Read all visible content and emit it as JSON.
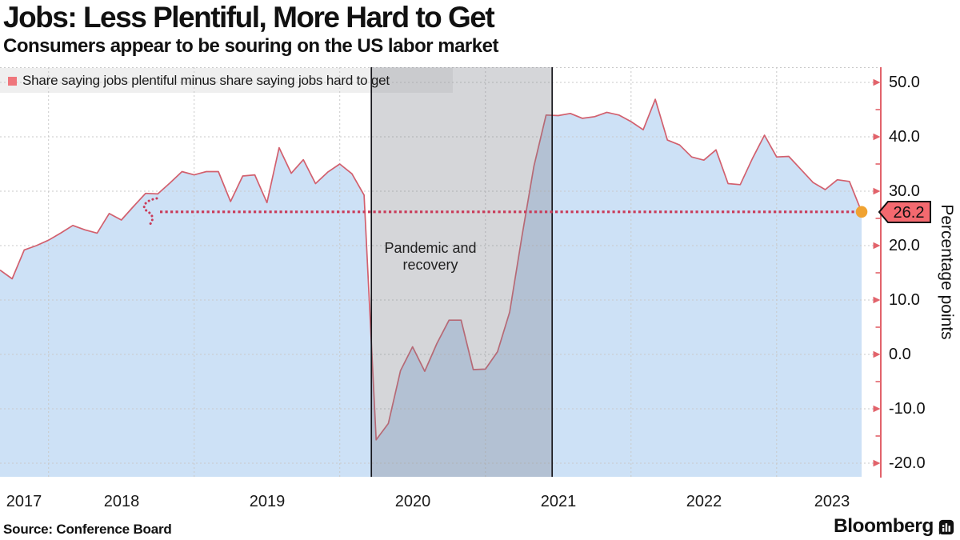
{
  "header": {
    "title": "Jobs: Less Plentiful, More Hard to Get",
    "subtitle": "Consumers appear to be souring on the US labor market"
  },
  "legend": {
    "label": "Share saying jobs plentiful minus share saying jobs hard to get"
  },
  "chart_data": {
    "type": "area",
    "series": [
      {
        "name": "Share saying jobs plentiful minus share saying jobs hard to get",
        "start_month": "2017-09",
        "end_month": "2023-08",
        "monthly_values": [
          15.5,
          13.9,
          19.2,
          20.0,
          21.0,
          22.3,
          23.7,
          22.9,
          22.3,
          25.9,
          24.7,
          27.2,
          29.6,
          29.5,
          31.5,
          33.6,
          33.0,
          33.6,
          33.6,
          28.1,
          32.8,
          33.0,
          27.9,
          38.0,
          33.3,
          35.8,
          31.4,
          33.5,
          35.0,
          33.2,
          29.3,
          -15.7,
          -12.7,
          -3.0,
          1.4,
          -3.1,
          2.0,
          6.3,
          6.3,
          -2.8,
          -2.7,
          0.5,
          7.8,
          21.6,
          34.6,
          44.0,
          43.9,
          44.3,
          43.4,
          43.7,
          44.5,
          44.0,
          42.8,
          41.3,
          46.9,
          39.4,
          38.5,
          36.3,
          35.7,
          37.6,
          31.4,
          31.2,
          36.0,
          40.3,
          36.3,
          36.4,
          34.0,
          31.6,
          30.3,
          32.1,
          31.8,
          26.2
        ]
      }
    ],
    "x_axis": {
      "labels": [
        "2017",
        "2018",
        "2019",
        "2020",
        "2021",
        "2022",
        "2023"
      ]
    },
    "y_axis": {
      "title": "Percentage points",
      "ticks": [
        50,
        40,
        30,
        20,
        10,
        0,
        -10,
        -20
      ],
      "minor_ticks": [
        45,
        35,
        25,
        15,
        5,
        -5,
        -15
      ],
      "range": [
        -22.5,
        52.8
      ],
      "side": "right"
    },
    "grid": true,
    "legend_position": "top-left",
    "band": {
      "label": "Pandemic and recovery",
      "start_month": "2020-03",
      "end_month": "2021-06"
    },
    "annotation": {
      "label": "26.2",
      "value": 26.2,
      "style": "dotted horizontal line from last value"
    },
    "last_point": {
      "month": "2023-08",
      "value": 26.2
    },
    "colors": {
      "line": "#d2606e",
      "area_fill": "#cde1f6",
      "dotted_line": "#c93a58",
      "axis": "#e2636b",
      "band_fill": "rgba(124,129,138,0.32)",
      "band_border": "#17171d",
      "badge_fill": "#f4696f",
      "badge_border": "#111111",
      "dot": "#f0a231",
      "legend_bg": "#efefef",
      "legend_swatch": "#ef767c",
      "gridline": "#c9c9c9"
    }
  },
  "footer": {
    "source": "Source: Conference Board",
    "brand": "Bloomberg"
  }
}
